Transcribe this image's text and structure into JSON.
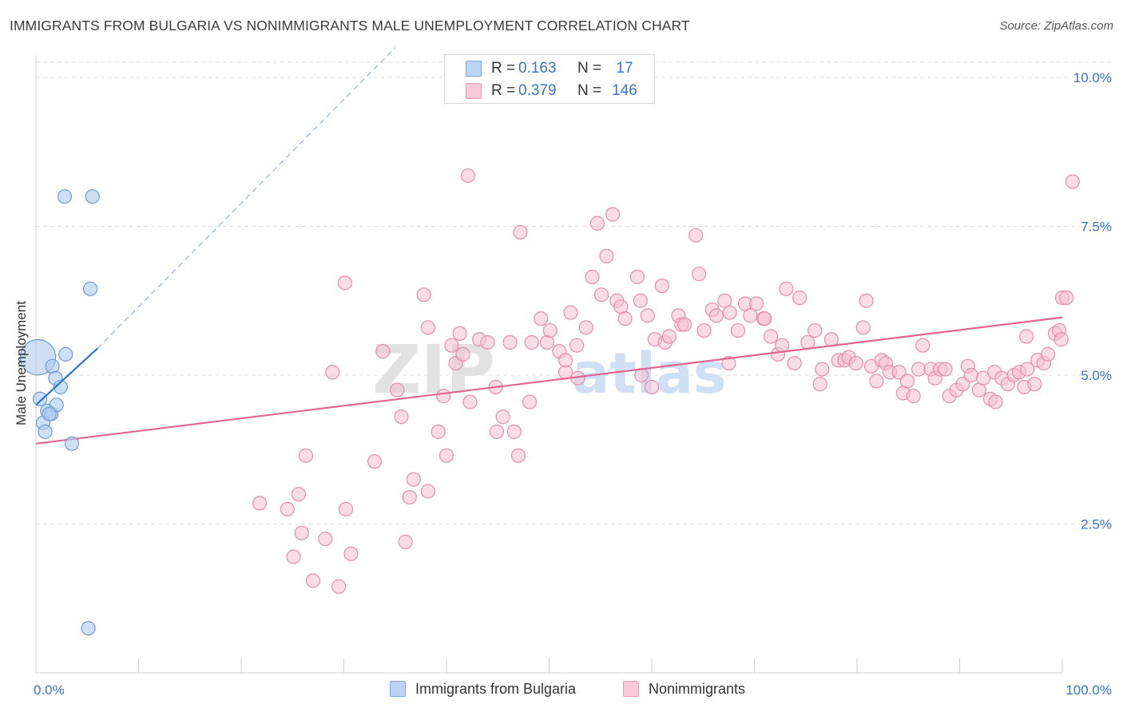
{
  "title": "IMMIGRANTS FROM BULGARIA VS NONIMMIGRANTS MALE UNEMPLOYMENT CORRELATION CHART",
  "source": "Source: ZipAtlas.com",
  "legend_top": [
    {
      "r_label": "R =",
      "r_value": "0.163",
      "n_label": "N =",
      "n_value": "17"
    },
    {
      "r_label": "R =",
      "r_value": "0.379",
      "n_label": "N =",
      "n_value": "146"
    }
  ],
  "legend_bottom": [
    "Immigrants from Bulgaria",
    "Nonimmigrants"
  ],
  "colors": {
    "blue_fill": "#aecbf0",
    "blue_stroke": "#6e9ad6",
    "blue_line": "#2f73d0",
    "pink_fill": "#f6bfd2",
    "pink_stroke": "#e58eab",
    "pink_line": "#e0668f",
    "tick_text": "#3b74c6",
    "grid": "#dedede"
  },
  "watermark": {
    "zip": "ZIP",
    "atlas": "atlas"
  },
  "chart_data": {
    "type": "scatter",
    "title": "IMMIGRANTS FROM BULGARIA VS NONIMMIGRANTS MALE UNEMPLOYMENT CORRELATION CHART",
    "xlabel": "",
    "ylabel": "Male Unemployment",
    "xlim": [
      0,
      100
    ],
    "ylim": [
      0,
      10.5
    ],
    "x_tick_labels": [
      {
        "value": 0,
        "label": "0.0%"
      },
      {
        "value": 100,
        "label": "100.0%"
      }
    ],
    "y_tick_labels": [
      {
        "value": 2.5,
        "label": "2.5%"
      },
      {
        "value": 5.0,
        "label": "5.0%"
      },
      {
        "value": 7.5,
        "label": "7.5%"
      },
      {
        "value": 10.0,
        "label": "10.0%"
      }
    ],
    "grid": true,
    "series": [
      {
        "name": "Immigrants from Bulgaria",
        "points": [
          [
            0.2,
            5.3,
            2.6
          ],
          [
            0.4,
            4.6,
            1.0
          ],
          [
            0.7,
            4.2,
            1.0
          ],
          [
            0.9,
            4.05,
            1.0
          ],
          [
            1.1,
            4.4,
            1.0
          ],
          [
            1.5,
            4.35,
            1.0
          ],
          [
            1.6,
            5.15,
            1.0
          ],
          [
            1.9,
            4.95,
            1.0
          ],
          [
            2.0,
            4.5,
            1.0
          ],
          [
            2.4,
            4.8,
            1.0
          ],
          [
            2.9,
            5.35,
            1.0
          ],
          [
            2.8,
            8.0,
            1.0
          ],
          [
            5.5,
            8.0,
            1.0
          ],
          [
            5.3,
            6.45,
            1.0
          ],
          [
            3.5,
            3.85,
            1.0
          ],
          [
            5.1,
            0.75,
            1.0
          ],
          [
            1.3,
            4.35,
            1.0
          ]
        ],
        "trend": {
          "x": [
            0,
            6.0
          ],
          "y": [
            4.5,
            5.45
          ]
        },
        "trend_extension": {
          "x": [
            6.0,
            35.0
          ],
          "y": [
            5.45,
            10.5
          ]
        }
      },
      {
        "name": "Nonimmigrants",
        "points": [
          [
            21.8,
            2.85
          ],
          [
            24.5,
            2.75
          ],
          [
            25.6,
            3.0
          ],
          [
            25.9,
            2.35
          ],
          [
            26.3,
            3.65
          ],
          [
            25.1,
            1.95
          ],
          [
            27.0,
            1.55
          ],
          [
            28.2,
            2.25
          ],
          [
            29.5,
            1.45
          ],
          [
            30.2,
            2.75
          ],
          [
            30.7,
            2.0
          ],
          [
            28.9,
            5.05
          ],
          [
            30.1,
            6.55
          ],
          [
            33.0,
            3.55
          ],
          [
            33.8,
            5.4
          ],
          [
            35.2,
            4.75
          ],
          [
            35.6,
            4.3
          ],
          [
            36.0,
            2.2
          ],
          [
            36.4,
            2.95
          ],
          [
            36.8,
            3.25
          ],
          [
            38.2,
            3.05
          ],
          [
            39.2,
            4.05
          ],
          [
            37.8,
            6.35
          ],
          [
            38.2,
            5.8
          ],
          [
            39.7,
            4.65
          ],
          [
            40.5,
            5.5
          ],
          [
            40.9,
            5.2
          ],
          [
            41.3,
            5.7
          ],
          [
            41.6,
            5.35
          ],
          [
            42.3,
            4.55
          ],
          [
            40.0,
            3.65
          ],
          [
            43.2,
            5.6
          ],
          [
            44.0,
            5.55
          ],
          [
            44.8,
            4.8
          ],
          [
            44.9,
            4.05
          ],
          [
            45.5,
            4.3
          ],
          [
            46.2,
            5.55
          ],
          [
            46.6,
            4.05
          ],
          [
            47.0,
            3.65
          ],
          [
            42.1,
            8.35
          ],
          [
            47.2,
            7.4
          ],
          [
            48.1,
            4.55
          ],
          [
            48.3,
            5.55
          ],
          [
            49.2,
            5.95
          ],
          [
            49.8,
            5.55
          ],
          [
            50.1,
            5.75
          ],
          [
            51.0,
            5.4
          ],
          [
            51.6,
            5.05
          ],
          [
            51.6,
            5.25
          ],
          [
            52.1,
            6.05
          ],
          [
            52.8,
            4.95
          ],
          [
            52.7,
            5.5
          ],
          [
            53.6,
            5.8
          ],
          [
            54.2,
            6.65
          ],
          [
            54.7,
            7.55
          ],
          [
            55.1,
            6.35
          ],
          [
            55.6,
            7.0
          ],
          [
            56.2,
            7.7
          ],
          [
            56.6,
            6.25
          ],
          [
            57.0,
            6.15
          ],
          [
            57.4,
            5.95
          ],
          [
            58.6,
            6.65
          ],
          [
            58.9,
            6.25
          ],
          [
            59.0,
            5.0
          ],
          [
            59.6,
            6.0
          ],
          [
            60.0,
            4.8
          ],
          [
            60.3,
            5.6
          ],
          [
            61.0,
            6.5
          ],
          [
            61.3,
            5.55
          ],
          [
            61.7,
            5.65
          ],
          [
            62.6,
            6.0
          ],
          [
            62.9,
            5.85
          ],
          [
            63.2,
            5.85
          ],
          [
            64.3,
            7.35
          ],
          [
            64.6,
            6.7
          ],
          [
            65.1,
            5.75
          ],
          [
            65.9,
            6.1
          ],
          [
            66.3,
            6.0
          ],
          [
            67.1,
            6.25
          ],
          [
            67.6,
            6.05
          ],
          [
            67.5,
            5.2
          ],
          [
            68.4,
            5.75
          ],
          [
            69.1,
            6.2
          ],
          [
            69.6,
            6.0
          ],
          [
            70.2,
            6.2
          ],
          [
            70.9,
            5.95
          ],
          [
            71.0,
            5.95
          ],
          [
            71.6,
            5.65
          ],
          [
            72.3,
            5.35
          ],
          [
            72.7,
            5.5
          ],
          [
            73.1,
            6.45
          ],
          [
            73.9,
            5.2
          ],
          [
            74.4,
            6.3
          ],
          [
            75.2,
            5.55
          ],
          [
            75.9,
            5.75
          ],
          [
            76.4,
            4.85
          ],
          [
            76.6,
            5.1
          ],
          [
            77.5,
            5.6
          ],
          [
            78.2,
            5.25
          ],
          [
            78.8,
            5.25
          ],
          [
            79.2,
            5.3
          ],
          [
            79.9,
            5.2
          ],
          [
            80.6,
            5.8
          ],
          [
            80.9,
            6.25
          ],
          [
            81.4,
            5.15
          ],
          [
            81.9,
            4.9
          ],
          [
            82.4,
            5.25
          ],
          [
            82.8,
            5.2
          ],
          [
            83.2,
            5.05
          ],
          [
            84.1,
            5.05
          ],
          [
            84.5,
            4.7
          ],
          [
            84.9,
            4.9
          ],
          [
            85.5,
            4.65
          ],
          [
            86.0,
            5.1
          ],
          [
            86.4,
            5.5
          ],
          [
            87.2,
            5.1
          ],
          [
            87.6,
            4.95
          ],
          [
            88.1,
            5.1
          ],
          [
            88.6,
            5.1
          ],
          [
            89.0,
            4.65
          ],
          [
            89.7,
            4.75
          ],
          [
            90.3,
            4.85
          ],
          [
            90.8,
            5.15
          ],
          [
            91.1,
            5.0
          ],
          [
            91.9,
            4.75
          ],
          [
            92.3,
            4.95
          ],
          [
            93.0,
            4.6
          ],
          [
            93.4,
            5.05
          ],
          [
            94.1,
            4.95
          ],
          [
            94.7,
            4.85
          ],
          [
            95.3,
            5.0
          ],
          [
            95.8,
            5.05
          ],
          [
            96.3,
            4.8
          ],
          [
            96.6,
            5.1
          ],
          [
            97.3,
            4.85
          ],
          [
            97.6,
            5.25
          ],
          [
            98.2,
            5.2
          ],
          [
            98.6,
            5.35
          ],
          [
            96.5,
            5.65
          ],
          [
            99.3,
            5.7
          ],
          [
            99.7,
            5.75
          ],
          [
            99.9,
            5.6
          ],
          [
            100.0,
            6.3
          ],
          [
            100.4,
            6.3
          ],
          [
            101.0,
            8.25
          ],
          [
            93.5,
            4.55
          ]
        ],
        "trend": {
          "x": [
            0,
            100
          ],
          "y": [
            3.85,
            5.97
          ]
        }
      }
    ]
  }
}
